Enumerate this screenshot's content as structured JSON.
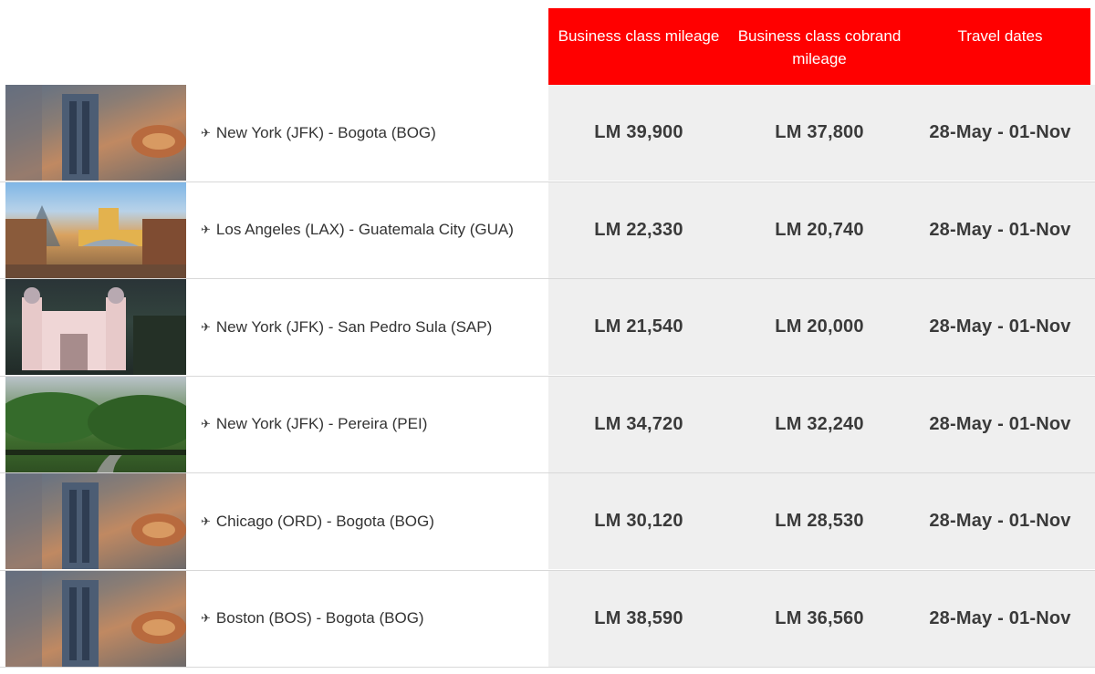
{
  "header": {
    "col1": "Business class mileage",
    "col2": "Business class cobrand mileage",
    "col3": "Travel dates"
  },
  "colors": {
    "header_bg": "#ff0000",
    "value_bg": "#efefef"
  },
  "rows": [
    {
      "image": "bogota-city-photo",
      "route": "New York (JFK) - Bogota (BOG)",
      "mileage": "LM 39,900",
      "cobrand": "LM 37,800",
      "dates": "28-May - 01-Nov"
    },
    {
      "image": "guatemala-arch-photo",
      "route": "Los Angeles (LAX) - Guatemala City (GUA)",
      "mileage": "LM 22,330",
      "cobrand": "LM 20,740",
      "dates": "28-May - 01-Nov"
    },
    {
      "image": "san-pedro-sula-cathedral-photo",
      "route": "New York (JFK) - San Pedro Sula (SAP)",
      "mileage": "LM 21,540",
      "cobrand": "LM 20,000",
      "dates": "28-May - 01-Nov"
    },
    {
      "image": "pereira-forest-photo",
      "route": "New York (JFK) - Pereira (PEI)",
      "mileage": "LM 34,720",
      "cobrand": "LM 32,240",
      "dates": "28-May - 01-Nov"
    },
    {
      "image": "bogota-city-photo",
      "route": "Chicago (ORD) - Bogota (BOG)",
      "mileage": "LM 30,120",
      "cobrand": "LM 28,530",
      "dates": "28-May - 01-Nov"
    },
    {
      "image": "bogota-city-photo",
      "route": "Boston (BOS) - Bogota (BOG)",
      "mileage": "LM 38,590",
      "cobrand": "LM 36,560",
      "dates": "28-May - 01-Nov"
    }
  ],
  "icons": {
    "route_icon": "plane-icon"
  }
}
